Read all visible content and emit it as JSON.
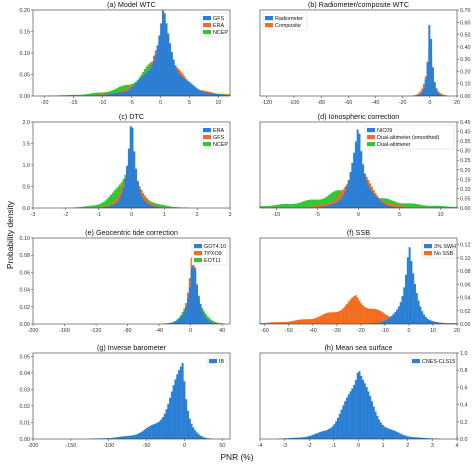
{
  "figure": {
    "ylabel": "Probability density",
    "xlabel": "PNR (%)"
  },
  "colors": {
    "blue": "#2b7fd4",
    "orange": "#f26d1f",
    "green": "#33c633"
  },
  "chart_data": [
    {
      "type": "bar",
      "title": "(a) Model WTC",
      "xlim": [
        -22,
        12
      ],
      "xticks": [
        "-20",
        "-15",
        "-10",
        "-5",
        "0",
        "5",
        "10"
      ],
      "xtick_values": [
        -20,
        -15,
        -10,
        -5,
        0,
        5,
        10
      ],
      "ylim": [
        0,
        0.2
      ],
      "yticks": [
        "0.00",
        "0.05",
        "0.10",
        "0.15",
        "0.20"
      ],
      "ytick_values": [
        0,
        0.05,
        0.1,
        0.15,
        0.2
      ],
      "yside": "left",
      "legend": "top-right",
      "series": [
        {
          "name": "GFS",
          "color": "blue",
          "peak_x": 0.5,
          "peak_y": 0.185,
          "spread": 2.8
        },
        {
          "name": "ERA",
          "color": "orange",
          "peak_x": 0.5,
          "peak_y": 0.15,
          "spread": 3.2
        },
        {
          "name": "NCEP",
          "color": "green",
          "peak_x": -1.0,
          "peak_y": 0.085,
          "spread": 4.6
        }
      ]
    },
    {
      "type": "bar",
      "title": "(b) Radiometer/composite WTC",
      "xlim": [
        -125,
        20
      ],
      "xticks": [
        "-120",
        "-100",
        "-80",
        "-60",
        "-40",
        "-20",
        "0",
        "20"
      ],
      "xtick_values": [
        -120,
        -100,
        -80,
        -60,
        -40,
        -20,
        0,
        20
      ],
      "ylim": [
        0,
        0.7
      ],
      "yticks": [
        "0.00",
        "0.10",
        "0.20",
        "0.30",
        "0.40",
        "0.50",
        "0.60",
        "0.70"
      ],
      "ytick_values": [
        0,
        0.1,
        0.2,
        0.3,
        0.4,
        0.5,
        0.6,
        0.7
      ],
      "yside": "right",
      "legend": "top-left",
      "series": [
        {
          "name": "Radiometer",
          "color": "blue",
          "peak_x": 0,
          "peak_y": 0.65,
          "spread": 2.2
        },
        {
          "name": "Composite",
          "color": "orange",
          "peak_x": 0,
          "peak_y": 0.47,
          "spread": 3.0
        }
      ]
    },
    {
      "type": "bar",
      "title": "(c) DTC",
      "xlim": [
        -3,
        3
      ],
      "xticks": [
        "-3",
        "-2",
        "-1",
        "0",
        "1",
        "2",
        "3"
      ],
      "xtick_values": [
        -3,
        -2,
        -1,
        0,
        1,
        2,
        3
      ],
      "ylim": [
        0,
        2.0
      ],
      "yticks": [
        "0.0",
        "0.5",
        "1.0",
        "1.5",
        "2.0"
      ],
      "ytick_values": [
        0,
        0.5,
        1.0,
        1.5,
        2.0
      ],
      "yside": "left",
      "legend": "top-right",
      "series": [
        {
          "name": "ERA",
          "color": "blue",
          "peak_x": 0,
          "peak_y": 1.95,
          "spread": 0.2
        },
        {
          "name": "GFS",
          "color": "orange",
          "peak_x": 0,
          "peak_y": 1.6,
          "spread": 0.25
        },
        {
          "name": "NCEP",
          "color": "green",
          "peak_x": -0.1,
          "peak_y": 1.15,
          "spread": 0.42
        }
      ]
    },
    {
      "type": "bar",
      "title": "(d) Ionospheric correction",
      "xlim": [
        -12,
        12
      ],
      "xticks": [
        "-10",
        "-5",
        "0",
        "5",
        "10"
      ],
      "xtick_values": [
        -10,
        -5,
        0,
        5,
        10
      ],
      "ylim": [
        0,
        0.45
      ],
      "yticks": [
        "0.00",
        "0.05",
        "0.10",
        "0.15",
        "0.20",
        "0.25",
        "0.30",
        "0.35",
        "0.40",
        "0.45"
      ],
      "ytick_values": [
        0,
        0.05,
        0.1,
        0.15,
        0.2,
        0.25,
        0.3,
        0.35,
        0.4,
        0.45
      ],
      "yside": "right",
      "legend": "top-right",
      "series": [
        {
          "name": "NIC09",
          "color": "blue",
          "peak_x": 0,
          "peak_y": 0.43,
          "spread": 1.2
        },
        {
          "name": "Dual-altimeter (smoothed)",
          "color": "orange",
          "peak_x": 0,
          "peak_y": 0.28,
          "spread": 1.8
        },
        {
          "name": "Dual-altimeter",
          "color": "green",
          "peak_x": -1.0,
          "peak_y": 0.12,
          "spread": 5.0
        }
      ]
    },
    {
      "type": "bar",
      "title": "(e) Geocentric tide correction",
      "xlim": [
        -200,
        50
      ],
      "xticks": [
        "-200",
        "-160",
        "-120",
        "-80",
        "-40",
        "0",
        "40"
      ],
      "xtick_values": [
        -200,
        -160,
        -120,
        -80,
        -40,
        0,
        40
      ],
      "ylim": [
        0,
        0.1
      ],
      "yticks": [
        "0.00",
        "0.02",
        "0.04",
        "0.06",
        "0.08",
        "0.10"
      ],
      "ytick_values": [
        0,
        0.02,
        0.04,
        0.06,
        0.08,
        0.1
      ],
      "yside": "left",
      "legend": "top-right",
      "series": [
        {
          "name": "GOT4.10",
          "color": "blue",
          "peak_x": 3,
          "peak_y": 0.097,
          "spread": 7
        },
        {
          "name": "TPXO9",
          "color": "orange",
          "peak_x": 3,
          "peak_y": 0.09,
          "spread": 7.5
        },
        {
          "name": "EOT11",
          "color": "green",
          "peak_x": 4,
          "peak_y": 0.075,
          "spread": 9
        }
      ]
    },
    {
      "type": "bar",
      "title": "(f) SSB",
      "xlim": [
        -62,
        20
      ],
      "xticks": [
        "-60",
        "-50",
        "-40",
        "-30",
        "-20",
        "-10",
        "0",
        "10",
        "20"
      ],
      "xtick_values": [
        -60,
        -50,
        -40,
        -30,
        -20,
        -10,
        0,
        10,
        20
      ],
      "ylim": [
        0,
        0.13
      ],
      "yticks": [
        "0.00",
        "0.02",
        "0.04",
        "0.06",
        "0.08",
        "0.10",
        "0.12"
      ],
      "ytick_values": [
        0,
        0.02,
        0.04,
        0.06,
        0.08,
        0.1,
        0.12
      ],
      "yside": "right",
      "legend": "top-right",
      "series": [
        {
          "name": "3% SWH",
          "color": "blue",
          "peak_x": 0,
          "peak_y": 0.12,
          "spread": 3.5
        },
        {
          "name": "No SSB",
          "color": "orange",
          "peak_x": -22,
          "peak_y": 0.04,
          "spread": 14
        }
      ]
    },
    {
      "type": "bar",
      "title": "(g) Inverse barometer",
      "xlim": [
        -200,
        60
      ],
      "xticks": [
        "-200",
        "-150",
        "-100",
        "-50",
        "0",
        "50"
      ],
      "xtick_values": [
        -200,
        -150,
        -100,
        -50,
        0,
        50
      ],
      "ylim": [
        0,
        0.052
      ],
      "yticks": [
        "0.00",
        "0.01",
        "0.02",
        "0.03",
        "0.04",
        "0.05"
      ],
      "ytick_values": [
        0,
        0.01,
        0.02,
        0.03,
        0.04,
        0.05
      ],
      "yside": "left",
      "legend": "top-right",
      "series": [
        {
          "name": "IB",
          "color": "blue",
          "peak_x": -2,
          "peak_y": 0.05,
          "spread": 8,
          "skew": "left"
        }
      ]
    },
    {
      "type": "bar",
      "title": "(h) Mean sea surface",
      "xlim": [
        -4,
        4
      ],
      "xticks": [
        "-4",
        "-3",
        "-2",
        "-1",
        "0",
        "1",
        "2",
        "3",
        "4"
      ],
      "xtick_values": [
        -4,
        -3,
        -2,
        -1,
        0,
        1,
        2,
        3,
        4
      ],
      "ylim": [
        0,
        1.0
      ],
      "yticks": [
        "0.0",
        "0.2",
        "0.4",
        "0.6",
        "0.8",
        "1.0"
      ],
      "ytick_values": [
        0,
        0.2,
        0.4,
        0.6,
        0.8,
        1.0
      ],
      "yside": "right",
      "legend": "top-right",
      "series": [
        {
          "name": "CNES-CLS15",
          "color": "blue",
          "peak_x": 0,
          "peak_y": 0.95,
          "spread": 0.7
        }
      ]
    }
  ]
}
